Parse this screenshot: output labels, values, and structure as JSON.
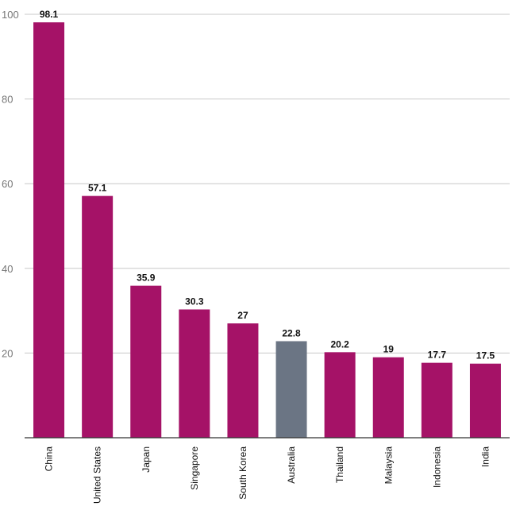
{
  "chart_data": {
    "type": "bar",
    "categories": [
      "China",
      "United States",
      "Japan",
      "Singapore",
      "South Korea",
      "Australia",
      "Thailand",
      "Malaysia",
      "Indonesia",
      "India"
    ],
    "values": [
      98.1,
      57.1,
      35.9,
      30.3,
      27,
      22.8,
      20.2,
      19,
      17.7,
      17.5
    ],
    "data_labels": [
      "98.1",
      "57.1",
      "35.9",
      "30.3",
      "27",
      "22.8",
      "20.2",
      "19",
      "17.7",
      "17.5"
    ],
    "ylim": [
      0,
      100
    ],
    "yticks": [
      20,
      40,
      60,
      80,
      100
    ],
    "grid": true,
    "colors": {
      "default": "#a51267",
      "highlight": "#6b7584",
      "highlight_category": "Australia"
    }
  }
}
